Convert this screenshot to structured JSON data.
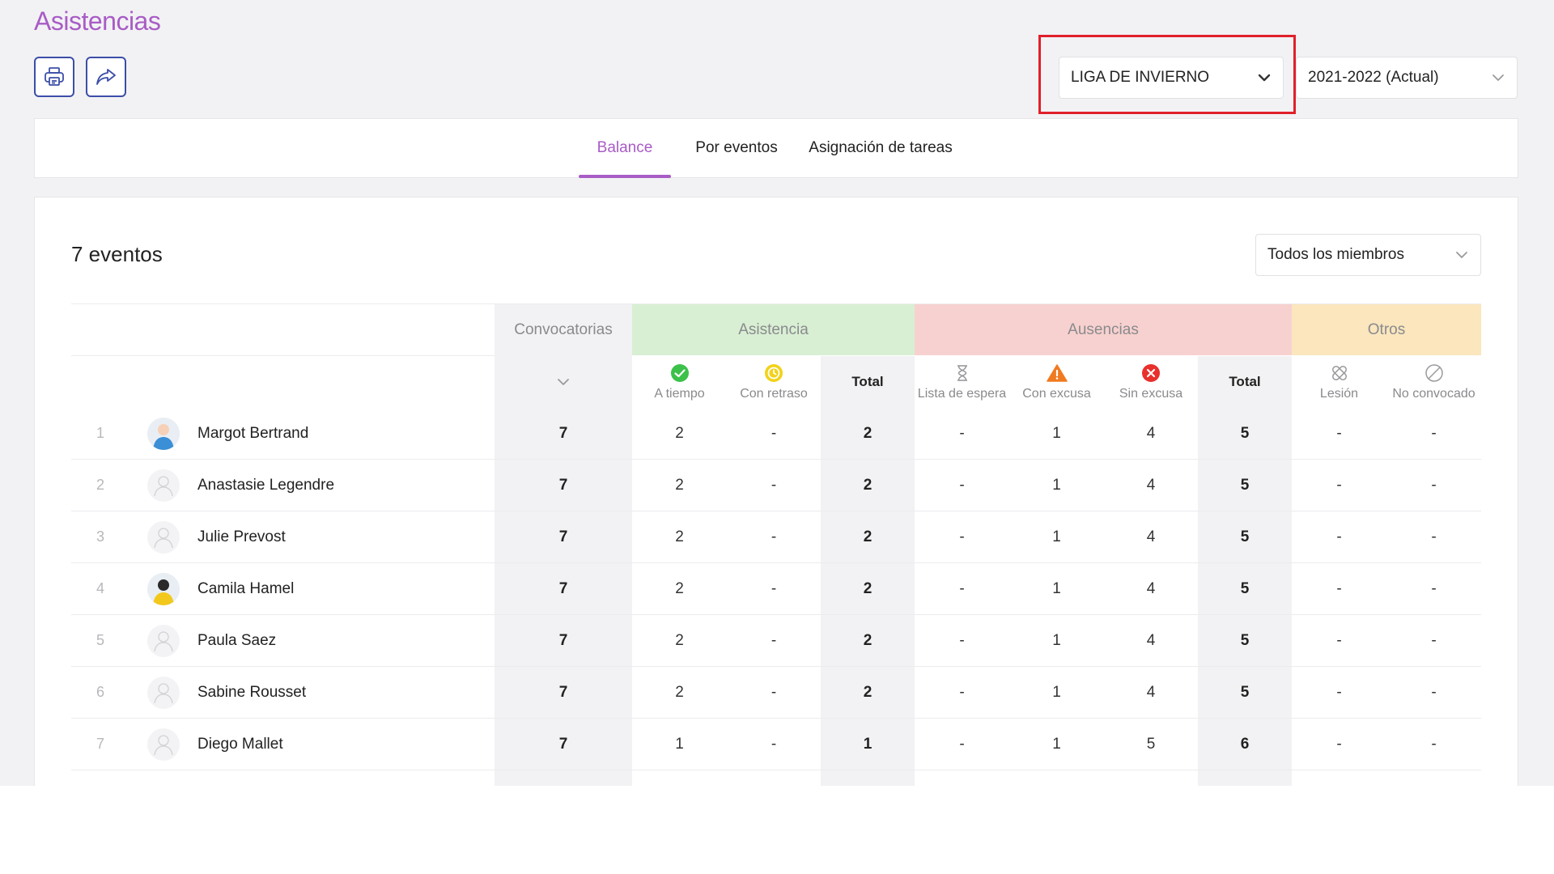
{
  "page": {
    "title": "Asistencias"
  },
  "toolbar": {
    "print_icon": "printer-icon",
    "share_icon": "share-arrow-icon"
  },
  "competition_select": {
    "value": "LIGA DE INVIERNO"
  },
  "season_select": {
    "value": "2021-2022 (Actual)"
  },
  "tabs": [
    {
      "label": "Balance",
      "active": true
    },
    {
      "label": "Por eventos",
      "active": false
    },
    {
      "label": "Asignación de tareas",
      "active": false
    }
  ],
  "summary": {
    "events_count": "7 eventos"
  },
  "member_filter": {
    "value": "Todos los miembros"
  },
  "colors": {
    "accent": "#a85cc6",
    "asistencia": "#d8efd3",
    "ausencias": "#f7d1cf",
    "otros": "#fbe6bd",
    "gray_col": "#f2f2f4"
  },
  "table": {
    "groups": {
      "convocatorias": "Convocatorias",
      "asistencia": "Asistencia",
      "ausencias": "Ausencias",
      "otros": "Otros"
    },
    "columns": {
      "a_tiempo": "A tiempo",
      "con_retraso": "Con retraso",
      "total_asistencia": "Total",
      "lista_espera": "Lista de espera",
      "con_excusa": "Con excusa",
      "sin_excusa": "Sin excusa",
      "total_ausencias": "Total",
      "lesion": "Lesión",
      "no_convocado": "No convocado"
    },
    "rows": [
      {
        "index": "1",
        "name": "Margot Bertrand",
        "avatar": "photo-avatar",
        "convocatorias": "7",
        "a_tiempo": "2",
        "con_retraso": "-",
        "total_asistencia": "2",
        "lista_espera": "-",
        "con_excusa": "1",
        "sin_excusa": "4",
        "total_ausencias": "5",
        "lesion": "-",
        "no_convocado": "-"
      },
      {
        "index": "2",
        "name": "Anastasie Legendre",
        "avatar": "placeholder-avatar",
        "convocatorias": "7",
        "a_tiempo": "2",
        "con_retraso": "-",
        "total_asistencia": "2",
        "lista_espera": "-",
        "con_excusa": "1",
        "sin_excusa": "4",
        "total_ausencias": "5",
        "lesion": "-",
        "no_convocado": "-"
      },
      {
        "index": "3",
        "name": "Julie Prevost",
        "avatar": "placeholder-avatar",
        "convocatorias": "7",
        "a_tiempo": "2",
        "con_retraso": "-",
        "total_asistencia": "2",
        "lista_espera": "-",
        "con_excusa": "1",
        "sin_excusa": "4",
        "total_ausencias": "5",
        "lesion": "-",
        "no_convocado": "-"
      },
      {
        "index": "4",
        "name": "Camila Hamel",
        "avatar": "photo-avatar",
        "convocatorias": "7",
        "a_tiempo": "2",
        "con_retraso": "-",
        "total_asistencia": "2",
        "lista_espera": "-",
        "con_excusa": "1",
        "sin_excusa": "4",
        "total_ausencias": "5",
        "lesion": "-",
        "no_convocado": "-"
      },
      {
        "index": "5",
        "name": "Paula Saez",
        "avatar": "placeholder-avatar",
        "convocatorias": "7",
        "a_tiempo": "2",
        "con_retraso": "-",
        "total_asistencia": "2",
        "lista_espera": "-",
        "con_excusa": "1",
        "sin_excusa": "4",
        "total_ausencias": "5",
        "lesion": "-",
        "no_convocado": "-"
      },
      {
        "index": "6",
        "name": "Sabine Rousset",
        "avatar": "placeholder-avatar",
        "convocatorias": "7",
        "a_tiempo": "2",
        "con_retraso": "-",
        "total_asistencia": "2",
        "lista_espera": "-",
        "con_excusa": "1",
        "sin_excusa": "4",
        "total_ausencias": "5",
        "lesion": "-",
        "no_convocado": "-"
      },
      {
        "index": "7",
        "name": "Diego Mallet",
        "avatar": "placeholder-avatar",
        "convocatorias": "7",
        "a_tiempo": "1",
        "con_retraso": "-",
        "total_asistencia": "1",
        "lista_espera": "-",
        "con_excusa": "1",
        "sin_excusa": "5",
        "total_ausencias": "6",
        "lesion": "-",
        "no_convocado": "-"
      }
    ]
  }
}
